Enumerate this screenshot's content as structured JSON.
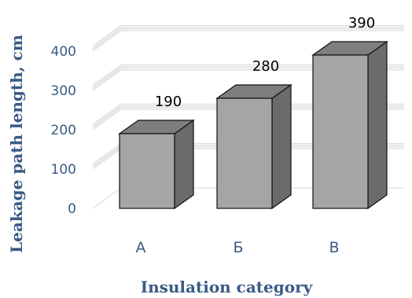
{
  "chart_data": {
    "type": "bar",
    "categories": [
      "А",
      "Б",
      "В"
    ],
    "values": [
      190,
      280,
      390
    ],
    "data_labels": [
      "190",
      "280",
      "390"
    ],
    "xlabel": "Insulation category",
    "ylabel": "Leakage path length, cm",
    "ylim": [
      0,
      400
    ],
    "yticks": [
      "0",
      "100",
      "200",
      "300",
      "400"
    ],
    "grid": true,
    "style": "3d-column",
    "colors": {
      "front": "#a6a4a4",
      "side": "#6b6b6b",
      "top": "#7e7e7e",
      "text": "#3a5a85",
      "grid": "#d6d6d6"
    }
  }
}
